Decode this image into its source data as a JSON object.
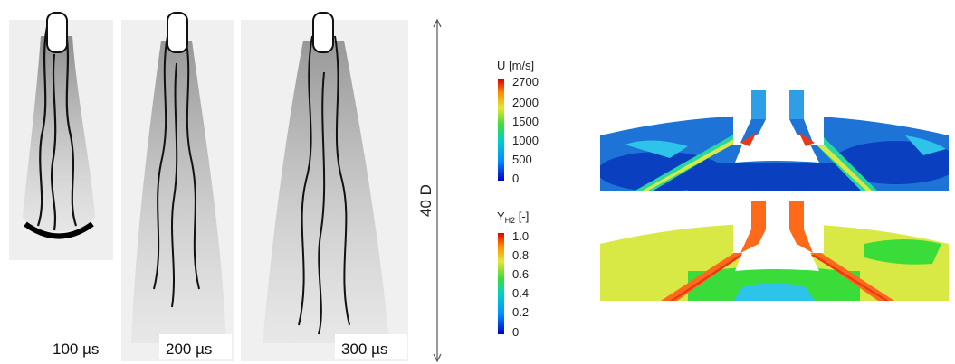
{
  "schlieren": {
    "panels": [
      {
        "label": "100 µs"
      },
      {
        "label": "200 µs"
      },
      {
        "label": "300 µs"
      }
    ],
    "scale_label": "40 D"
  },
  "velocity_colorbar": {
    "title": "U [m/s]",
    "ticks": [
      "2700",
      "2000",
      "1500",
      "1000",
      "500",
      "0"
    ]
  },
  "h2_colorbar": {
    "title_main": "Y",
    "title_sub": "H2",
    "title_unit": " [-]",
    "ticks": [
      "1.0",
      "0.8",
      "0.6",
      "0.4",
      "0.2",
      "0"
    ]
  },
  "colors": {
    "schlieren_bg": "#f0f0f0",
    "u_bg": "#1e74d6",
    "u_dark": "#0a3fc0",
    "yh2_bg": "#d8e845"
  }
}
